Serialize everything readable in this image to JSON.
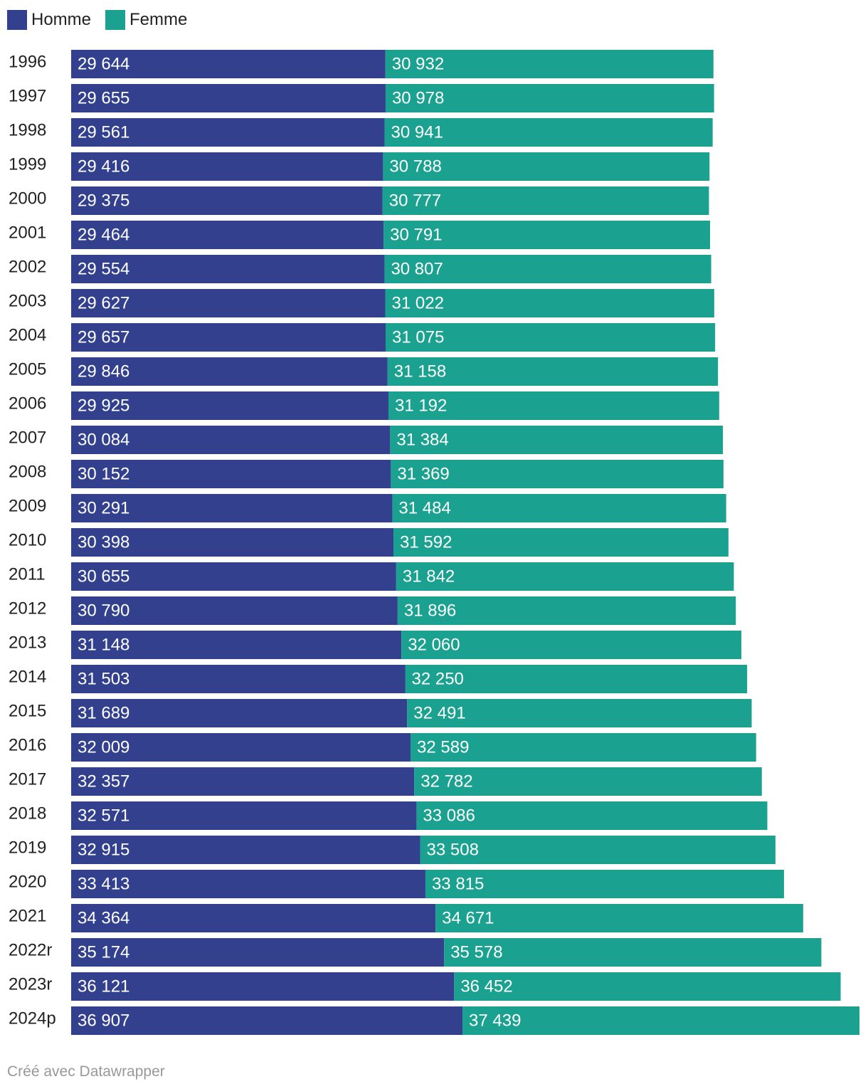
{
  "chart_data": {
    "type": "bar",
    "orientation": "horizontal",
    "stacked": true,
    "categories": [
      "1996",
      "1997",
      "1998",
      "1999",
      "2000",
      "2001",
      "2002",
      "2003",
      "2004",
      "2005",
      "2006",
      "2007",
      "2008",
      "2009",
      "2010",
      "2011",
      "2012",
      "2013",
      "2014",
      "2015",
      "2016",
      "2017",
      "2018",
      "2019",
      "2020",
      "2021",
      "2022r",
      "2023r",
      "2024p"
    ],
    "series": [
      {
        "name": "Homme",
        "color": "#33408e",
        "values": [
          29644,
          29655,
          29561,
          29416,
          29375,
          29464,
          29554,
          29627,
          29657,
          29846,
          29925,
          30084,
          30152,
          30291,
          30398,
          30655,
          30790,
          31148,
          31503,
          31689,
          32009,
          32357,
          32571,
          32915,
          33413,
          34364,
          35174,
          36121,
          36907
        ],
        "labels": [
          "29 644",
          "29 655",
          "29 561",
          "29 416",
          "29 375",
          "29 464",
          "29 554",
          "29 627",
          "29 657",
          "29 846",
          "29 925",
          "30 084",
          "30 152",
          "30 291",
          "30 398",
          "30 655",
          "30 790",
          "31 148",
          "31 503",
          "31 689",
          "32 009",
          "32 357",
          "32 571",
          "32 915",
          "33 413",
          "34 364",
          "35 174",
          "36 121",
          "36 907"
        ]
      },
      {
        "name": "Femme",
        "color": "#1aa190",
        "values": [
          30932,
          30978,
          30941,
          30788,
          30777,
          30791,
          30807,
          31022,
          31075,
          31158,
          31192,
          31384,
          31369,
          31484,
          31592,
          31842,
          31896,
          32060,
          32250,
          32491,
          32589,
          32782,
          33086,
          33508,
          33815,
          34671,
          35578,
          36452,
          37439
        ],
        "labels": [
          "30 932",
          "30 978",
          "30 941",
          "30 788",
          "30 777",
          "30 791",
          "30 807",
          "31 022",
          "31 075",
          "31 158",
          "31 192",
          "31 384",
          "31 369",
          "31 484",
          "31 592",
          "31 842",
          "31 896",
          "32 060",
          "32 250",
          "32 491",
          "32 589",
          "32 782",
          "33 086",
          "33 508",
          "33 815",
          "34 671",
          "35 578",
          "36 452",
          "37 439"
        ]
      }
    ],
    "title": "",
    "xlabel": "",
    "ylabel": "",
    "xlim": [
      0,
      74346
    ],
    "grid": false,
    "legend_position": "top-left"
  },
  "footer": {
    "credit": "Créé avec Datawrapper"
  }
}
